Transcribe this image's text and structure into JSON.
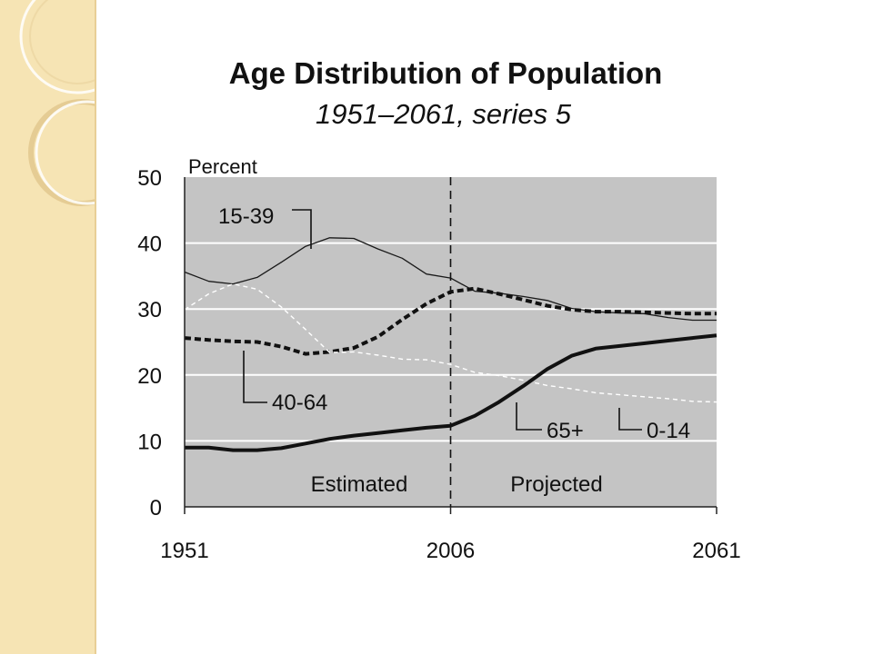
{
  "chart_data": {
    "type": "line",
    "title": "Age Distribution of Population",
    "subtitle": "1951–2061, series 5",
    "ylabel": "Percent",
    "xlim": [
      1951,
      2061
    ],
    "ylim": [
      0,
      50
    ],
    "x_ticks": [
      "1951",
      "2006",
      "2061"
    ],
    "y_ticks": [
      "0",
      "10",
      "20",
      "30",
      "40",
      "50"
    ],
    "grid": true,
    "divider_x": 2006,
    "region_labels": [
      "Estimated",
      "Projected"
    ],
    "series": [
      {
        "name": "15-39",
        "style": "thin-solid",
        "x": [
          1951,
          1956,
          1961,
          1966,
          1971,
          1976,
          1981,
          1986,
          1991,
          1996,
          2001,
          2006,
          2011,
          2016,
          2021,
          2026,
          2031,
          2036,
          2041,
          2046,
          2051,
          2056,
          2061
        ],
        "y": [
          35.6,
          34.2,
          33.8,
          34.8,
          37.1,
          39.5,
          40.8,
          40.7,
          39.1,
          37.7,
          35.3,
          34.7,
          32.7,
          32.4,
          31.9,
          31.3,
          30.1,
          29.6,
          29.4,
          29.3,
          28.7,
          28.3,
          28.3
        ]
      },
      {
        "name": "40-64",
        "style": "thick-dashed",
        "x": [
          1951,
          1956,
          1961,
          1966,
          1971,
          1976,
          1981,
          1986,
          1991,
          1996,
          2001,
          2006,
          2011,
          2016,
          2021,
          2026,
          2031,
          2036,
          2041,
          2046,
          2051,
          2056,
          2061
        ],
        "y": [
          25.6,
          25.3,
          25.1,
          25.0,
          24.3,
          23.2,
          23.5,
          24.1,
          25.8,
          28.4,
          30.8,
          32.6,
          33.1,
          32.3,
          31.4,
          30.5,
          29.9,
          29.6,
          29.6,
          29.5,
          29.4,
          29.3,
          29.3
        ]
      },
      {
        "name": "0-14",
        "style": "thin-dashed",
        "x": [
          1951,
          1956,
          1961,
          1966,
          1971,
          1976,
          1981,
          1986,
          1991,
          1996,
          2001,
          2006,
          2011,
          2016,
          2021,
          2026,
          2031,
          2036,
          2041,
          2046,
          2051,
          2056,
          2061
        ],
        "y": [
          29.9,
          32.3,
          33.8,
          33.0,
          30.3,
          26.9,
          23.4,
          23.5,
          23.0,
          22.4,
          22.3,
          21.6,
          20.4,
          19.9,
          19.2,
          18.4,
          17.9,
          17.3,
          17.0,
          16.7,
          16.4,
          16.0,
          15.9
        ]
      },
      {
        "name": "65+",
        "style": "thick-solid",
        "x": [
          1951,
          1956,
          1961,
          1966,
          1971,
          1976,
          1981,
          1986,
          1991,
          1996,
          2001,
          2006,
          2011,
          2016,
          2021,
          2026,
          2031,
          2036,
          2041,
          2046,
          2051,
          2056,
          2061
        ],
        "y": [
          9.0,
          9.0,
          8.6,
          8.6,
          8.9,
          9.6,
          10.3,
          10.8,
          11.2,
          11.6,
          12.0,
          12.3,
          13.8,
          15.9,
          18.3,
          20.9,
          22.9,
          24.0,
          24.4,
          24.8,
          25.2,
          25.6,
          26.0
        ]
      }
    ],
    "annotations": [
      "15-39",
      "40-64",
      "65+",
      "0-14"
    ]
  }
}
